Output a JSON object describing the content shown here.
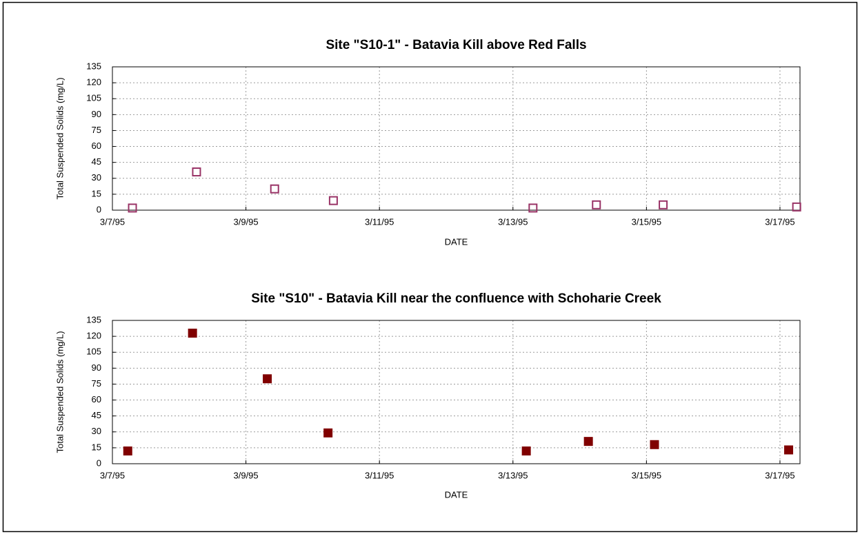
{
  "chart_data": [
    {
      "type": "scatter",
      "title": "Site \"S10-1\" - Batavia Kill above Red Falls",
      "xlabel": "DATE",
      "ylabel": "Total Suspended Solids (mg/L)",
      "x": [
        7.3,
        8.26,
        9.43,
        10.31,
        13.3,
        14.25,
        15.25,
        17.25
      ],
      "values": [
        2,
        36,
        20,
        9,
        2,
        5,
        5,
        3
      ],
      "color": "#993366",
      "filled": false,
      "xlim": [
        7,
        17.3
      ],
      "xticks": [
        {
          "value": 7,
          "label": "3/7/95"
        },
        {
          "value": 9,
          "label": "3/9/95"
        },
        {
          "value": 11,
          "label": "3/11/95"
        },
        {
          "value": 13,
          "label": "3/13/95"
        },
        {
          "value": 15,
          "label": "3/15/95"
        },
        {
          "value": 17,
          "label": "3/17/95"
        }
      ],
      "ylim": [
        0,
        135
      ],
      "yticks": [
        0,
        15,
        30,
        45,
        60,
        75,
        90,
        105,
        120,
        135
      ],
      "grid": true
    },
    {
      "type": "scatter",
      "title": "Site \"S10\" - Batavia Kill near the confluence with Schoharie Creek",
      "xlabel": "DATE",
      "ylabel": "Total Suspended Solids (mg/L)",
      "x": [
        7.23,
        8.2,
        9.32,
        10.23,
        13.2,
        14.13,
        15.12,
        17.13
      ],
      "values": [
        12,
        123,
        80,
        29,
        12,
        21,
        18,
        13
      ],
      "color": "#800000",
      "filled": true,
      "xlim": [
        7,
        17.3
      ],
      "xticks": [
        {
          "value": 7,
          "label": "3/7/95"
        },
        {
          "value": 9,
          "label": "3/9/95"
        },
        {
          "value": 11,
          "label": "3/11/95"
        },
        {
          "value": 13,
          "label": "3/13/95"
        },
        {
          "value": 15,
          "label": "3/15/95"
        },
        {
          "value": 17,
          "label": "3/17/95"
        }
      ],
      "ylim": [
        0,
        135
      ],
      "yticks": [
        0,
        15,
        30,
        45,
        60,
        75,
        90,
        105,
        120,
        135
      ],
      "grid": true
    }
  ]
}
